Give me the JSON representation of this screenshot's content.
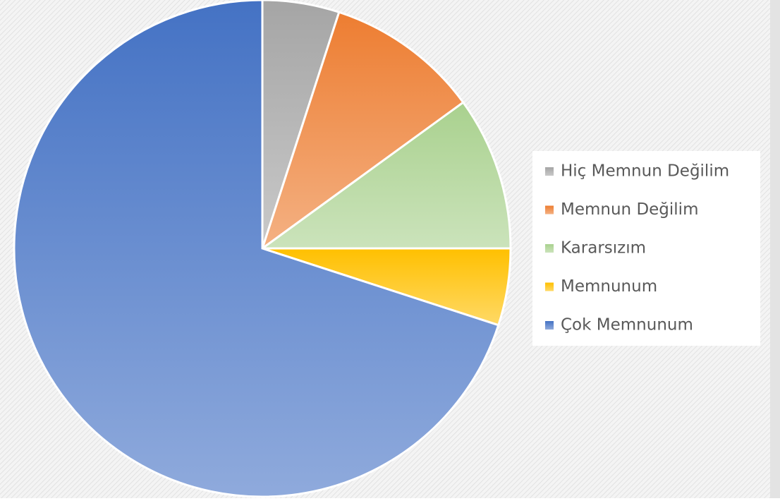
{
  "chart_data": {
    "type": "pie",
    "categories": [
      "Hiç Memnun Değilim",
      "Memnun Değilim",
      "Kararsızım",
      "Memnunum",
      "Çok Memnunum"
    ],
    "values": [
      5,
      10,
      10,
      5,
      70
    ],
    "colors": [
      "#a5a5a5",
      "#ed7d31",
      "#a9d18e",
      "#ffc000",
      "#4472c4"
    ],
    "legend": "right"
  }
}
